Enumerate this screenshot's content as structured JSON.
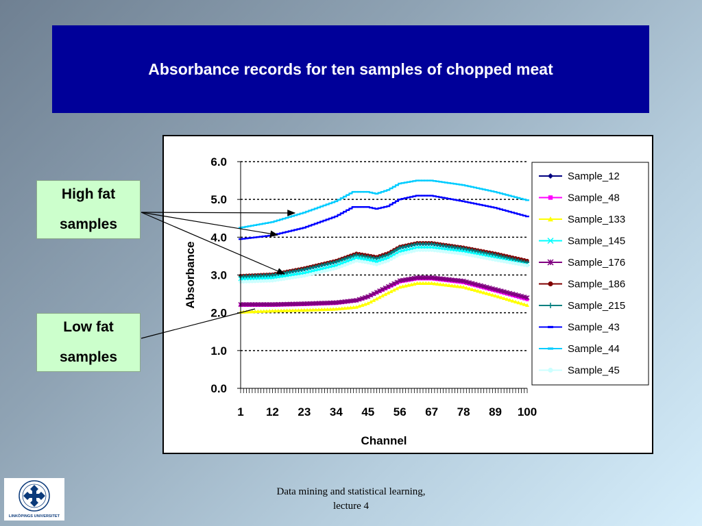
{
  "slide": {
    "title": "Absorbance records for ten samples of chopped meat",
    "footer_line1": "Data mining and statistical learning,",
    "footer_line2": "lecture 4",
    "logo_caption": "LINKÖPINGS UNIVERSITET"
  },
  "callouts": {
    "high_fat_line1": "High fat",
    "high_fat_line2": "samples",
    "low_fat_line1": "Low fat",
    "low_fat_line2": "samples"
  },
  "colors": {
    "title_bg": "#000099",
    "callout_bg": "#ccffcc"
  },
  "chart_data": {
    "type": "line",
    "xlabel": "Channel",
    "ylabel": "Absorbance",
    "ylim": [
      0,
      6
    ],
    "xlim": [
      1,
      100
    ],
    "y_ticks": [
      "0.0",
      "1.0",
      "2.0",
      "3.0",
      "4.0",
      "5.0",
      "6.0"
    ],
    "x_tick_labels": [
      "1",
      "12",
      "23",
      "34",
      "45",
      "56",
      "67",
      "78",
      "89",
      "100"
    ],
    "x_tick_label_positions": [
      1,
      12,
      23,
      34,
      45,
      56,
      67,
      78,
      89,
      100
    ],
    "grid": "horizontal dashed",
    "legend_position": "right",
    "series": [
      {
        "name": "Sample_12",
        "color": "#000080",
        "marker": "diamond",
        "points": [
          [
            1,
            2.95
          ],
          [
            12,
            3.0
          ],
          [
            23,
            3.15
          ],
          [
            34,
            3.35
          ],
          [
            41,
            3.55
          ],
          [
            45,
            3.5
          ],
          [
            48,
            3.45
          ],
          [
            52,
            3.55
          ],
          [
            56,
            3.72
          ],
          [
            62,
            3.82
          ],
          [
            67,
            3.82
          ],
          [
            78,
            3.7
          ],
          [
            89,
            3.55
          ],
          [
            100,
            3.35
          ]
        ]
      },
      {
        "name": "Sample_48",
        "color": "#ff00ff",
        "marker": "square",
        "points": [
          [
            1,
            2.2
          ],
          [
            12,
            2.2
          ],
          [
            23,
            2.22
          ],
          [
            34,
            2.25
          ],
          [
            41,
            2.32
          ],
          [
            45,
            2.42
          ],
          [
            50,
            2.6
          ],
          [
            56,
            2.82
          ],
          [
            62,
            2.9
          ],
          [
            67,
            2.9
          ],
          [
            78,
            2.8
          ],
          [
            89,
            2.58
          ],
          [
            100,
            2.35
          ]
        ]
      },
      {
        "name": "Sample_133",
        "color": "#ffff00",
        "marker": "triangle",
        "points": [
          [
            1,
            2.02
          ],
          [
            12,
            2.05
          ],
          [
            23,
            2.07
          ],
          [
            34,
            2.1
          ],
          [
            41,
            2.15
          ],
          [
            45,
            2.25
          ],
          [
            50,
            2.45
          ],
          [
            56,
            2.68
          ],
          [
            62,
            2.78
          ],
          [
            67,
            2.78
          ],
          [
            78,
            2.68
          ],
          [
            89,
            2.45
          ],
          [
            100,
            2.2
          ]
        ]
      },
      {
        "name": "Sample_145",
        "color": "#00ffff",
        "marker": "x",
        "points": [
          [
            1,
            2.9
          ],
          [
            12,
            2.92
          ],
          [
            23,
            3.05
          ],
          [
            34,
            3.25
          ],
          [
            41,
            3.45
          ],
          [
            45,
            3.4
          ],
          [
            48,
            3.35
          ],
          [
            52,
            3.45
          ],
          [
            56,
            3.62
          ],
          [
            62,
            3.72
          ],
          [
            67,
            3.72
          ],
          [
            78,
            3.62
          ],
          [
            89,
            3.45
          ],
          [
            100,
            3.3
          ]
        ]
      },
      {
        "name": "Sample_176",
        "color": "#800080",
        "marker": "star",
        "points": [
          [
            1,
            2.22
          ],
          [
            12,
            2.22
          ],
          [
            23,
            2.24
          ],
          [
            34,
            2.27
          ],
          [
            41,
            2.33
          ],
          [
            45,
            2.43
          ],
          [
            50,
            2.62
          ],
          [
            56,
            2.85
          ],
          [
            62,
            2.93
          ],
          [
            67,
            2.93
          ],
          [
            78,
            2.84
          ],
          [
            89,
            2.62
          ],
          [
            100,
            2.4
          ]
        ]
      },
      {
        "name": "Sample_186",
        "color": "#800000",
        "marker": "circle",
        "points": [
          [
            1,
            2.98
          ],
          [
            12,
            3.02
          ],
          [
            23,
            3.18
          ],
          [
            34,
            3.38
          ],
          [
            41,
            3.57
          ],
          [
            45,
            3.52
          ],
          [
            48,
            3.48
          ],
          [
            52,
            3.58
          ],
          [
            56,
            3.75
          ],
          [
            62,
            3.85
          ],
          [
            67,
            3.85
          ],
          [
            78,
            3.73
          ],
          [
            89,
            3.57
          ],
          [
            100,
            3.38
          ]
        ]
      },
      {
        "name": "Sample_215",
        "color": "#008080",
        "marker": "plus",
        "points": [
          [
            1,
            2.96
          ],
          [
            12,
            3.0
          ],
          [
            23,
            3.15
          ],
          [
            34,
            3.35
          ],
          [
            41,
            3.53
          ],
          [
            45,
            3.48
          ],
          [
            48,
            3.44
          ],
          [
            52,
            3.54
          ],
          [
            56,
            3.72
          ],
          [
            62,
            3.82
          ],
          [
            67,
            3.82
          ],
          [
            78,
            3.7
          ],
          [
            89,
            3.53
          ],
          [
            100,
            3.33
          ]
        ]
      },
      {
        "name": "Sample_43",
        "color": "#0000ff",
        "marker": "dash",
        "points": [
          [
            1,
            3.95
          ],
          [
            12,
            4.05
          ],
          [
            23,
            4.25
          ],
          [
            34,
            4.55
          ],
          [
            40,
            4.8
          ],
          [
            45,
            4.8
          ],
          [
            48,
            4.75
          ],
          [
            52,
            4.82
          ],
          [
            56,
            5.0
          ],
          [
            62,
            5.1
          ],
          [
            67,
            5.1
          ],
          [
            78,
            4.95
          ],
          [
            89,
            4.78
          ],
          [
            100,
            4.55
          ]
        ]
      },
      {
        "name": "Sample_44",
        "color": "#00ccff",
        "marker": "dash",
        "points": [
          [
            1,
            4.25
          ],
          [
            12,
            4.4
          ],
          [
            23,
            4.65
          ],
          [
            34,
            4.95
          ],
          [
            40,
            5.2
          ],
          [
            45,
            5.2
          ],
          [
            48,
            5.15
          ],
          [
            52,
            5.25
          ],
          [
            56,
            5.42
          ],
          [
            62,
            5.5
          ],
          [
            67,
            5.5
          ],
          [
            78,
            5.38
          ],
          [
            89,
            5.2
          ],
          [
            100,
            4.98
          ]
        ]
      },
      {
        "name": "Sample_45",
        "color": "#ccffff",
        "marker": "circle",
        "points": [
          [
            1,
            2.82
          ],
          [
            12,
            2.85
          ],
          [
            23,
            2.98
          ],
          [
            34,
            3.18
          ],
          [
            41,
            3.38
          ],
          [
            45,
            3.33
          ],
          [
            48,
            3.28
          ],
          [
            52,
            3.38
          ],
          [
            56,
            3.55
          ],
          [
            62,
            3.66
          ],
          [
            67,
            3.66
          ],
          [
            78,
            3.56
          ],
          [
            89,
            3.4
          ],
          [
            100,
            3.25
          ]
        ]
      }
    ]
  }
}
